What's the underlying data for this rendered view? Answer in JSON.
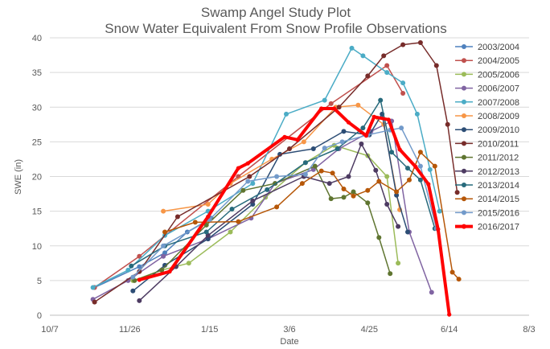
{
  "chart_data": {
    "type": "line",
    "title": "Swamp Angel Study Plot",
    "subtitle": "Snow Water Equivalent From Snow Profile Observations",
    "xlabel": "Date",
    "ylabel": "SWE (in)",
    "ylim": [
      0,
      40
    ],
    "yticks": [
      0,
      5,
      10,
      15,
      20,
      25,
      30,
      35,
      40
    ],
    "xlim": [
      0,
      300
    ],
    "xticks": [
      {
        "label": "10/7",
        "x": 0
      },
      {
        "label": "11/26",
        "x": 50
      },
      {
        "label": "1/15",
        "x": 100
      },
      {
        "label": "3/6",
        "x": 150
      },
      {
        "label": "4/25",
        "x": 200
      },
      {
        "label": "6/14",
        "x": 250
      },
      {
        "label": "8/3",
        "x": 300
      }
    ],
    "grid": true,
    "legend_position": "right",
    "series": [
      {
        "name": "2003/2004",
        "color": "#4F81BD",
        "width": 1.5,
        "points": [
          [
            28,
            4
          ],
          [
            56,
            7
          ],
          [
            72,
            9
          ],
          [
            86,
            12
          ],
          [
            101,
            14
          ]
        ]
      },
      {
        "name": "2004/2005",
        "color": "#C0504D",
        "width": 1.5,
        "points": [
          [
            28,
            4
          ],
          [
            56,
            8.5
          ],
          [
            118,
            20
          ],
          [
            176,
            30.5
          ],
          [
            211,
            36
          ],
          [
            221,
            32
          ]
        ]
      },
      {
        "name": "2005/2006",
        "color": "#9BBB59",
        "width": 1.5,
        "points": [
          [
            52,
            5
          ],
          [
            70,
            6.5
          ],
          [
            87,
            7.5
          ],
          [
            113,
            12
          ],
          [
            135,
            17
          ],
          [
            160,
            22
          ],
          [
            178,
            24.5
          ],
          [
            199,
            23
          ],
          [
            211,
            20
          ],
          [
            218,
            7.5
          ]
        ]
      },
      {
        "name": "2006/2007",
        "color": "#8064A2",
        "width": 1.5,
        "points": [
          [
            27,
            2.3
          ],
          [
            49,
            5
          ],
          [
            71,
            8.5
          ],
          [
            99,
            11
          ],
          [
            126,
            14
          ],
          [
            141,
            19
          ],
          [
            165,
            21
          ],
          [
            181,
            24
          ],
          [
            201,
            26.5
          ],
          [
            214,
            28
          ],
          [
            225,
            12
          ],
          [
            239,
            3.3
          ]
        ]
      },
      {
        "name": "2007/2008",
        "color": "#4BACC6",
        "width": 1.5,
        "points": [
          [
            27,
            4
          ],
          [
            49,
            6.5
          ],
          [
            72,
            11.5
          ],
          [
            99,
            15
          ],
          [
            127,
            19
          ],
          [
            148,
            29
          ],
          [
            172,
            31
          ],
          [
            189,
            38.5
          ],
          [
            196,
            37.4
          ],
          [
            211,
            35
          ],
          [
            221,
            33.5
          ],
          [
            230,
            29
          ],
          [
            238,
            21
          ],
          [
            244,
            15
          ]
        ]
      },
      {
        "name": "2008/2009",
        "color": "#F79646",
        "width": 1.5,
        "points": [
          [
            71,
            15
          ],
          [
            99,
            16
          ],
          [
            113,
            19
          ],
          [
            139,
            22.5
          ],
          [
            159,
            25
          ],
          [
            179,
            30
          ],
          [
            193,
            30.3
          ],
          [
            209,
            27.5
          ],
          [
            219,
            15.2
          ]
        ]
      },
      {
        "name": "2009/2010",
        "color": "#2C4D75",
        "width": 1.5,
        "points": [
          [
            52,
            3.5
          ],
          [
            72,
            7.2
          ],
          [
            99,
            11
          ],
          [
            127,
            16
          ],
          [
            144,
            23.2
          ],
          [
            165,
            24
          ],
          [
            184,
            26.5
          ],
          [
            200,
            26
          ],
          [
            208,
            29
          ],
          [
            217,
            17.3
          ],
          [
            224,
            12
          ]
        ]
      },
      {
        "name": "2010/2011",
        "color": "#772C2A",
        "width": 1.5,
        "points": [
          [
            28,
            1.9
          ],
          [
            56,
            6.3
          ],
          [
            80,
            14.2
          ],
          [
            125,
            20
          ],
          [
            150,
            24
          ],
          [
            181,
            30
          ],
          [
            199,
            34.5
          ],
          [
            209,
            37.4
          ],
          [
            221,
            39
          ],
          [
            232,
            39.3
          ],
          [
            242,
            36
          ],
          [
            249,
            27.5
          ],
          [
            255,
            17.7
          ]
        ]
      },
      {
        "name": "2011/2012",
        "color": "#5F7530",
        "width": 1.5,
        "points": [
          [
            53,
            5
          ],
          [
            70,
            6.5
          ],
          [
            98,
            13
          ],
          [
            121,
            18
          ],
          [
            141,
            19
          ],
          [
            166,
            21.5
          ],
          [
            176,
            16.8
          ],
          [
            184,
            17
          ],
          [
            190,
            17.8
          ],
          [
            199,
            16.2
          ],
          [
            206,
            11.2
          ],
          [
            213,
            6
          ]
        ]
      },
      {
        "name": "2012/2013",
        "color": "#4D3B62",
        "width": 1.5,
        "points": [
          [
            56,
            2.1
          ],
          [
            79,
            7
          ],
          [
            99,
            11.5
          ],
          [
            127,
            16.5
          ],
          [
            159,
            20
          ],
          [
            175,
            19
          ],
          [
            187,
            20
          ],
          [
            195,
            24.7
          ],
          [
            204,
            20.9
          ],
          [
            211,
            16
          ],
          [
            218,
            12.8
          ]
        ]
      },
      {
        "name": "2013/2014",
        "color": "#276A7C",
        "width": 1.5,
        "points": [
          [
            51,
            7.1
          ],
          [
            72,
            10
          ],
          [
            98,
            12
          ],
          [
            114,
            15.3
          ],
          [
            136,
            18.1
          ],
          [
            160,
            22
          ],
          [
            180,
            24
          ],
          [
            196,
            27
          ],
          [
            207,
            31
          ],
          [
            214,
            23.5
          ],
          [
            224,
            21.2
          ],
          [
            232,
            19.5
          ],
          [
            241,
            12.5
          ]
        ]
      },
      {
        "name": "2014/2015",
        "color": "#B65708",
        "width": 1.5,
        "points": [
          [
            72,
            12
          ],
          [
            91,
            13.4
          ],
          [
            118,
            13.5
          ],
          [
            142,
            15.6
          ],
          [
            158,
            19
          ],
          [
            170,
            20.8
          ],
          [
            177,
            20.5
          ],
          [
            184,
            18.2
          ],
          [
            190,
            17.2
          ],
          [
            199,
            18
          ],
          [
            206,
            19.3
          ],
          [
            217,
            17.8
          ],
          [
            225,
            19.5
          ],
          [
            232,
            23.5
          ],
          [
            241,
            21.5
          ],
          [
            252,
            6.2
          ],
          [
            256,
            5.2
          ]
        ]
      },
      {
        "name": "2015/2016",
        "color": "#729ACA",
        "width": 1.5,
        "points": [
          [
            52,
            5.5
          ],
          [
            71,
            10
          ],
          [
            100,
            13.8
          ],
          [
            124,
            19.3
          ],
          [
            142,
            20
          ],
          [
            160,
            20.3
          ],
          [
            172,
            24.1
          ],
          [
            183,
            25
          ],
          [
            199,
            26
          ],
          [
            213,
            26.7
          ],
          [
            220,
            27
          ],
          [
            232,
            21.5
          ],
          [
            242,
            12.5
          ]
        ]
      },
      {
        "name": "2016/2017",
        "color": "#FF0000",
        "width": 4,
        "points": [
          [
            56,
            5.1
          ],
          [
            75,
            6.3
          ],
          [
            99,
            14.2
          ],
          [
            118,
            21.2
          ],
          [
            124,
            21.9
          ],
          [
            147,
            25.7
          ],
          [
            155,
            25.3
          ],
          [
            170,
            29.8
          ],
          [
            178,
            29.8
          ],
          [
            187,
            27.8
          ],
          [
            198,
            25.9
          ],
          [
            203,
            28.6
          ],
          [
            212,
            28.2
          ],
          [
            219,
            23.9
          ],
          [
            229,
            21.4
          ],
          [
            237,
            18.9
          ],
          [
            243,
            12.4
          ],
          [
            250,
            0.1
          ]
        ]
      }
    ]
  }
}
